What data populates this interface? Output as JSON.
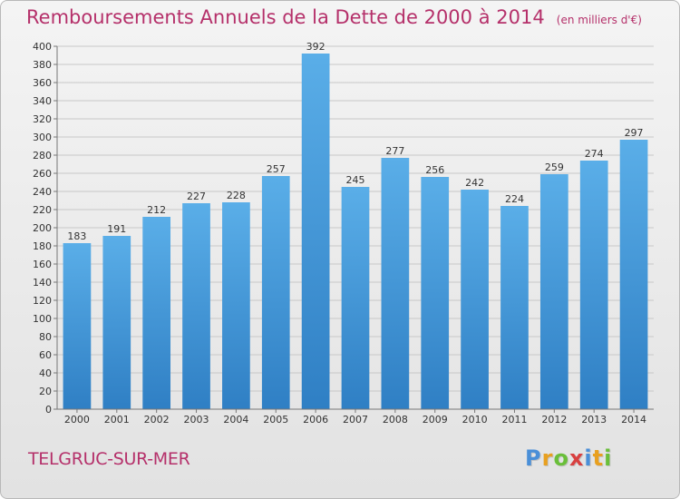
{
  "title": "Remboursements Annuels de la Dette de 2000 à 2014",
  "subtitle": "(en milliers d'€)",
  "commune": "TELGRUC-SUR-MER",
  "logo": {
    "text": "Proxiti",
    "letter_colors": [
      "#4a8fd8",
      "#e8a020",
      "#6abf3a",
      "#d84040",
      "#4a8fd8",
      "#e8a020",
      "#6abf3a"
    ]
  },
  "colors": {
    "bar_top": "#5aaee8",
    "bar_bottom": "#2f7fc4",
    "accent": "#b5306a",
    "grid": "#c8c8c8"
  },
  "chart_data": {
    "type": "bar",
    "categories": [
      "2000",
      "2001",
      "2002",
      "2003",
      "2004",
      "2005",
      "2006",
      "2007",
      "2008",
      "2009",
      "2010",
      "2011",
      "2012",
      "2013",
      "2014"
    ],
    "values": [
      183,
      191,
      212,
      227,
      228,
      257,
      392,
      245,
      277,
      256,
      242,
      224,
      259,
      274,
      297
    ],
    "ylim": [
      0,
      400
    ],
    "ytick_step": 20,
    "grid": true,
    "data_labels": true
  }
}
